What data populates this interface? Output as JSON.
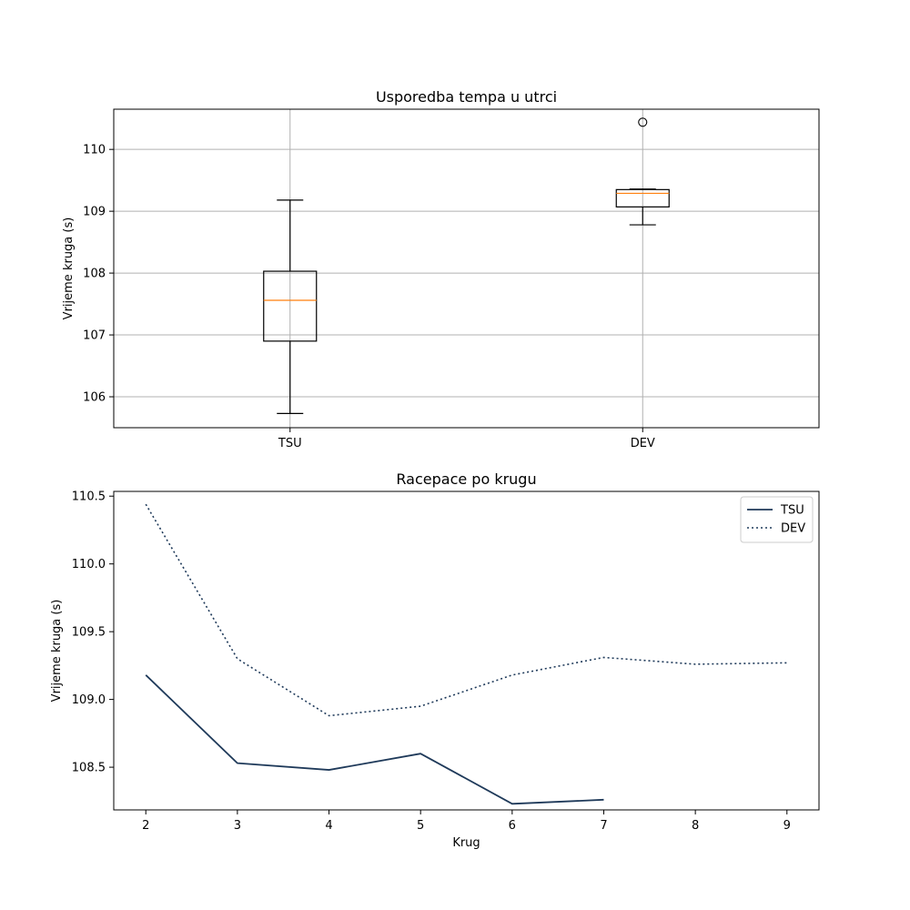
{
  "chart_data": [
    {
      "type": "box",
      "title": "Usporedba tempa u utrci",
      "xlabel": "",
      "ylabel": "Vrijeme kruga (s)",
      "ylim": [
        105.5,
        110.65
      ],
      "yticks": [
        106,
        107,
        108,
        109,
        110
      ],
      "grid": true,
      "categories": [
        "TSU",
        "DEV"
      ],
      "boxes": [
        {
          "name": "TSU",
          "whisker_low": 105.73,
          "q1": 106.9,
          "median": 107.56,
          "q3": 108.03,
          "whisker_high": 109.18,
          "fliers": []
        },
        {
          "name": "DEV",
          "whisker_low": 108.78,
          "q1": 109.07,
          "median": 109.29,
          "q3": 109.35,
          "whisker_high": 109.36,
          "fliers": [
            110.44
          ]
        }
      ],
      "colors": {
        "box": "#000000",
        "median": "#ff7f0e",
        "grid": "#b0b0b0"
      }
    },
    {
      "type": "line",
      "title": "Racepace po krugu",
      "xlabel": "Krug",
      "ylabel": "Vrijeme kruga (s)",
      "xlim": [
        1.65,
        9.35
      ],
      "ylim": [
        108.185,
        110.535
      ],
      "xticks": [
        2,
        3,
        4,
        5,
        6,
        7,
        8,
        9
      ],
      "yticks": [
        108.5,
        109.0,
        109.5,
        110.0,
        110.5
      ],
      "ytick_labels": [
        "108.5",
        "109.0",
        "109.5",
        "110.0",
        "110.5"
      ],
      "grid": false,
      "legend_position": "top-right",
      "series": [
        {
          "name": "TSU",
          "style": "solid",
          "color": "#1f3a5a",
          "x": [
            2,
            3,
            4,
            5,
            6,
            7
          ],
          "y": [
            109.18,
            108.53,
            108.48,
            108.6,
            108.23,
            108.26
          ]
        },
        {
          "name": "DEV",
          "style": "dotted",
          "color": "#1f3a5a",
          "x": [
            2,
            3,
            4,
            5,
            6,
            7,
            8,
            9
          ],
          "y": [
            110.44,
            109.3,
            108.88,
            108.95,
            109.18,
            109.31,
            109.26,
            109.27
          ]
        }
      ]
    }
  ]
}
